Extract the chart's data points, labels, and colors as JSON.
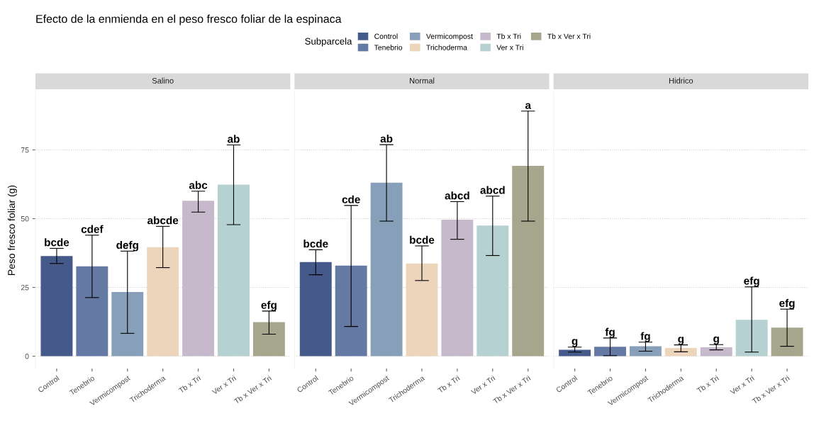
{
  "chart_data": [
    {
      "type": "bar",
      "title": "Salino",
      "ylabel": "Peso fresco foliar (g)",
      "legend_title": "Subparcela",
      "legend": "top",
      "stacked": true,
      "annotations": [
        "Efecto de la enmienda en el peso fresco foliar de la espinaca",
        {
          "text": "bcde",
          "x": "Control",
          "y": 39.2
        },
        {
          "text": "cdef",
          "x": "Tenebrio",
          "y": 44.0
        },
        {
          "text": "defg",
          "x": "Vermicompost",
          "y": 38.2
        },
        {
          "text": "abcde",
          "x": "Trichoderma",
          "y": 47.2
        },
        {
          "text": "abc",
          "x": "Tb x Tri",
          "y": 60.0
        },
        {
          "text": "ab",
          "x": "Ver x Tri",
          "y": 76.8
        },
        {
          "text": "efg",
          "x": "Tb x Ver x Tri",
          "y": 16.4
        }
      ],
      "categories": [
        "Control",
        "Tenebrio",
        "Vermicompost",
        "Trichoderma",
        "Tb x Tri",
        "Ver x Tri",
        "Tb x Ver x Tri"
      ],
      "series": [
        {
          "name": "Control",
          "color": "#45598a",
          "values": [
            36.4,
            null,
            null,
            null,
            null,
            null,
            null
          ],
          "errors": [
            [
              33.7,
              39.2
            ],
            null,
            null,
            null,
            null,
            null,
            null
          ]
        },
        {
          "name": "Tenebrio",
          "color": "#6479a3",
          "values": [
            null,
            32.7,
            null,
            null,
            null,
            null,
            null
          ],
          "errors": [
            null,
            [
              21.3,
              44.0
            ],
            null,
            null,
            null,
            null,
            null
          ]
        },
        {
          "name": "Vermicompost",
          "color": "#879fb8",
          "values": [
            null,
            null,
            23.3,
            null,
            null,
            null,
            null
          ],
          "errors": [
            null,
            null,
            [
              8.3,
              38.2
            ],
            null,
            null,
            null,
            null
          ]
        },
        {
          "name": "Trichoderma",
          "color": "#edd5bc",
          "values": [
            null,
            null,
            null,
            39.6,
            null,
            null,
            null
          ],
          "errors": [
            null,
            null,
            null,
            [
              32.2,
              47.2
            ],
            null,
            null,
            null
          ]
        },
        {
          "name": "Tb x Tri",
          "color": "#c6b9cb",
          "values": [
            null,
            null,
            null,
            null,
            56.5,
            null,
            null
          ],
          "errors": [
            null,
            null,
            null,
            null,
            [
              52.4,
              60.0
            ],
            null,
            null
          ]
        },
        {
          "name": "Ver x Tri",
          "color": "#b5d1d1",
          "values": [
            null,
            null,
            null,
            null,
            null,
            62.4,
            null
          ],
          "errors": [
            null,
            null,
            null,
            null,
            null,
            [
              47.8,
              76.8
            ],
            null
          ]
        },
        {
          "name": "Tb x Ver x Tri",
          "color": "#a6a68d",
          "values": [
            null,
            null,
            null,
            null,
            null,
            null,
            12.4
          ],
          "errors": [
            null,
            null,
            null,
            null,
            null,
            null,
            [
              8.0,
              16.4
            ]
          ]
        }
      ],
      "ylim": [
        -4.5,
        96
      ],
      "yticks": [
        0,
        25,
        50,
        75
      ],
      "grid": "y"
    },
    {
      "type": "bar",
      "title": "Normal",
      "stacked": true,
      "annotations": [
        {
          "text": "bcde",
          "x": "Control",
          "y": 38.7
        },
        {
          "text": "cde",
          "x": "Tenebrio",
          "y": 54.8
        },
        {
          "text": "ab",
          "x": "Vermicompost",
          "y": 76.9
        },
        {
          "text": "bcde",
          "x": "Trichoderma",
          "y": 40.1
        },
        {
          "text": "abcd",
          "x": "Tb x Tri",
          "y": 56.2
        },
        {
          "text": "abcd",
          "x": "Ver x Tri",
          "y": 58.2
        },
        {
          "text": "a",
          "x": "Tb x Ver x Tri",
          "y": 89.1
        }
      ],
      "categories": [
        "Control",
        "Tenebrio",
        "Vermicompost",
        "Trichoderma",
        "Tb x Tri",
        "Ver x Tri",
        "Tb x Ver x Tri"
      ],
      "series": [
        {
          "color": "#45598a",
          "values": [
            34.2,
            null,
            null,
            null,
            null,
            null,
            null
          ],
          "errors": [
            [
              29.6,
              38.7
            ],
            null,
            null,
            null,
            null,
            null,
            null
          ]
        },
        {
          "color": "#6479a3",
          "values": [
            null,
            32.9,
            null,
            null,
            null,
            null,
            null
          ],
          "errors": [
            null,
            [
              10.8,
              54.8
            ],
            null,
            null,
            null,
            null,
            null
          ]
        },
        {
          "color": "#879fb8",
          "values": [
            null,
            null,
            63.1,
            null,
            null,
            null,
            null
          ],
          "errors": [
            null,
            null,
            [
              49.1,
              76.9
            ],
            null,
            null,
            null,
            null
          ]
        },
        {
          "color": "#edd5bc",
          "values": [
            null,
            null,
            null,
            33.7,
            null,
            null,
            null
          ],
          "errors": [
            null,
            null,
            null,
            [
              27.5,
              40.1
            ],
            null,
            null,
            null
          ]
        },
        {
          "color": "#c6b9cb",
          "values": [
            null,
            null,
            null,
            null,
            49.6,
            null,
            null
          ],
          "errors": [
            null,
            null,
            null,
            null,
            [
              42.5,
              56.2
            ],
            null,
            null
          ]
        },
        {
          "color": "#b5d1d1",
          "values": [
            null,
            null,
            null,
            null,
            null,
            47.5,
            null
          ],
          "errors": [
            null,
            null,
            null,
            null,
            null,
            [
              36.6,
              58.2
            ],
            null
          ]
        },
        {
          "color": "#a6a68d",
          "values": [
            null,
            null,
            null,
            null,
            null,
            null,
            69.2
          ],
          "errors": [
            null,
            null,
            null,
            null,
            null,
            null,
            [
              49.1,
              89.1
            ]
          ]
        }
      ],
      "ylim": [
        -4.5,
        96
      ],
      "yticks": [
        0,
        25,
        50,
        75
      ],
      "grid": "y",
      "tick_labels": "x"
    },
    {
      "type": "bar",
      "title": "Hidrico",
      "stacked": true,
      "annotations": [
        {
          "text": "g",
          "x": "Control",
          "y": 3.3
        },
        {
          "text": "fg",
          "x": "Tenebrio",
          "y": 6.6
        },
        {
          "text": "fg",
          "x": "Vermicompost",
          "y": 5.1
        },
        {
          "text": "g",
          "x": "Trichoderma",
          "y": 4.1
        },
        {
          "text": "g",
          "x": "Tb x Tri",
          "y": 4.2
        },
        {
          "text": "efg",
          "x": "Ver x Tri",
          "y": 25.2
        },
        {
          "text": "efg",
          "x": "Tb x Ver x Tri",
          "y": 17.1
        }
      ],
      "categories": [
        "Control",
        "Tenebrio",
        "Vermicompost",
        "Trichoderma",
        "Tb x Tri",
        "Ver x Tri",
        "Tb x Ver x Tri"
      ],
      "series": [
        {
          "color": "#45598a",
          "values": [
            2.3,
            null,
            null,
            null,
            null,
            null,
            null
          ],
          "errors": [
            [
              1.5,
              3.3
            ],
            null,
            null,
            null,
            null,
            null,
            null
          ]
        },
        {
          "color": "#6479a3",
          "values": [
            null,
            3.4,
            null,
            null,
            null,
            null,
            null
          ],
          "errors": [
            null,
            [
              0.2,
              6.6
            ],
            null,
            null,
            null,
            null,
            null
          ]
        },
        {
          "color": "#879fb8",
          "values": [
            null,
            null,
            3.6,
            null,
            null,
            null,
            null
          ],
          "errors": [
            null,
            null,
            [
              1.8,
              5.1
            ],
            null,
            null,
            null,
            null
          ]
        },
        {
          "color": "#edd5bc",
          "values": [
            null,
            null,
            null,
            3.0,
            null,
            null,
            null
          ],
          "errors": [
            null,
            null,
            null,
            [
              1.6,
              4.1
            ],
            null,
            null,
            null
          ]
        },
        {
          "color": "#c6b9cb",
          "values": [
            null,
            null,
            null,
            null,
            3.2,
            null,
            null
          ],
          "errors": [
            null,
            null,
            null,
            null,
            [
              2.3,
              4.2
            ],
            null,
            null
          ]
        },
        {
          "color": "#b5d1d1",
          "values": [
            null,
            null,
            null,
            null,
            null,
            13.2,
            null
          ],
          "errors": [
            null,
            null,
            null,
            null,
            null,
            [
              1.5,
              25.2
            ],
            null
          ]
        },
        {
          "color": "#a6a68d",
          "values": [
            null,
            null,
            null,
            null,
            null,
            null,
            10.4
          ],
          "errors": [
            null,
            null,
            null,
            null,
            null,
            null,
            [
              3.6,
              17.1
            ]
          ]
        }
      ],
      "ylim": [
        -4.5,
        96
      ],
      "yticks": [
        0,
        25,
        50,
        75
      ],
      "grid": "y",
      "tick_labels": "x"
    }
  ]
}
